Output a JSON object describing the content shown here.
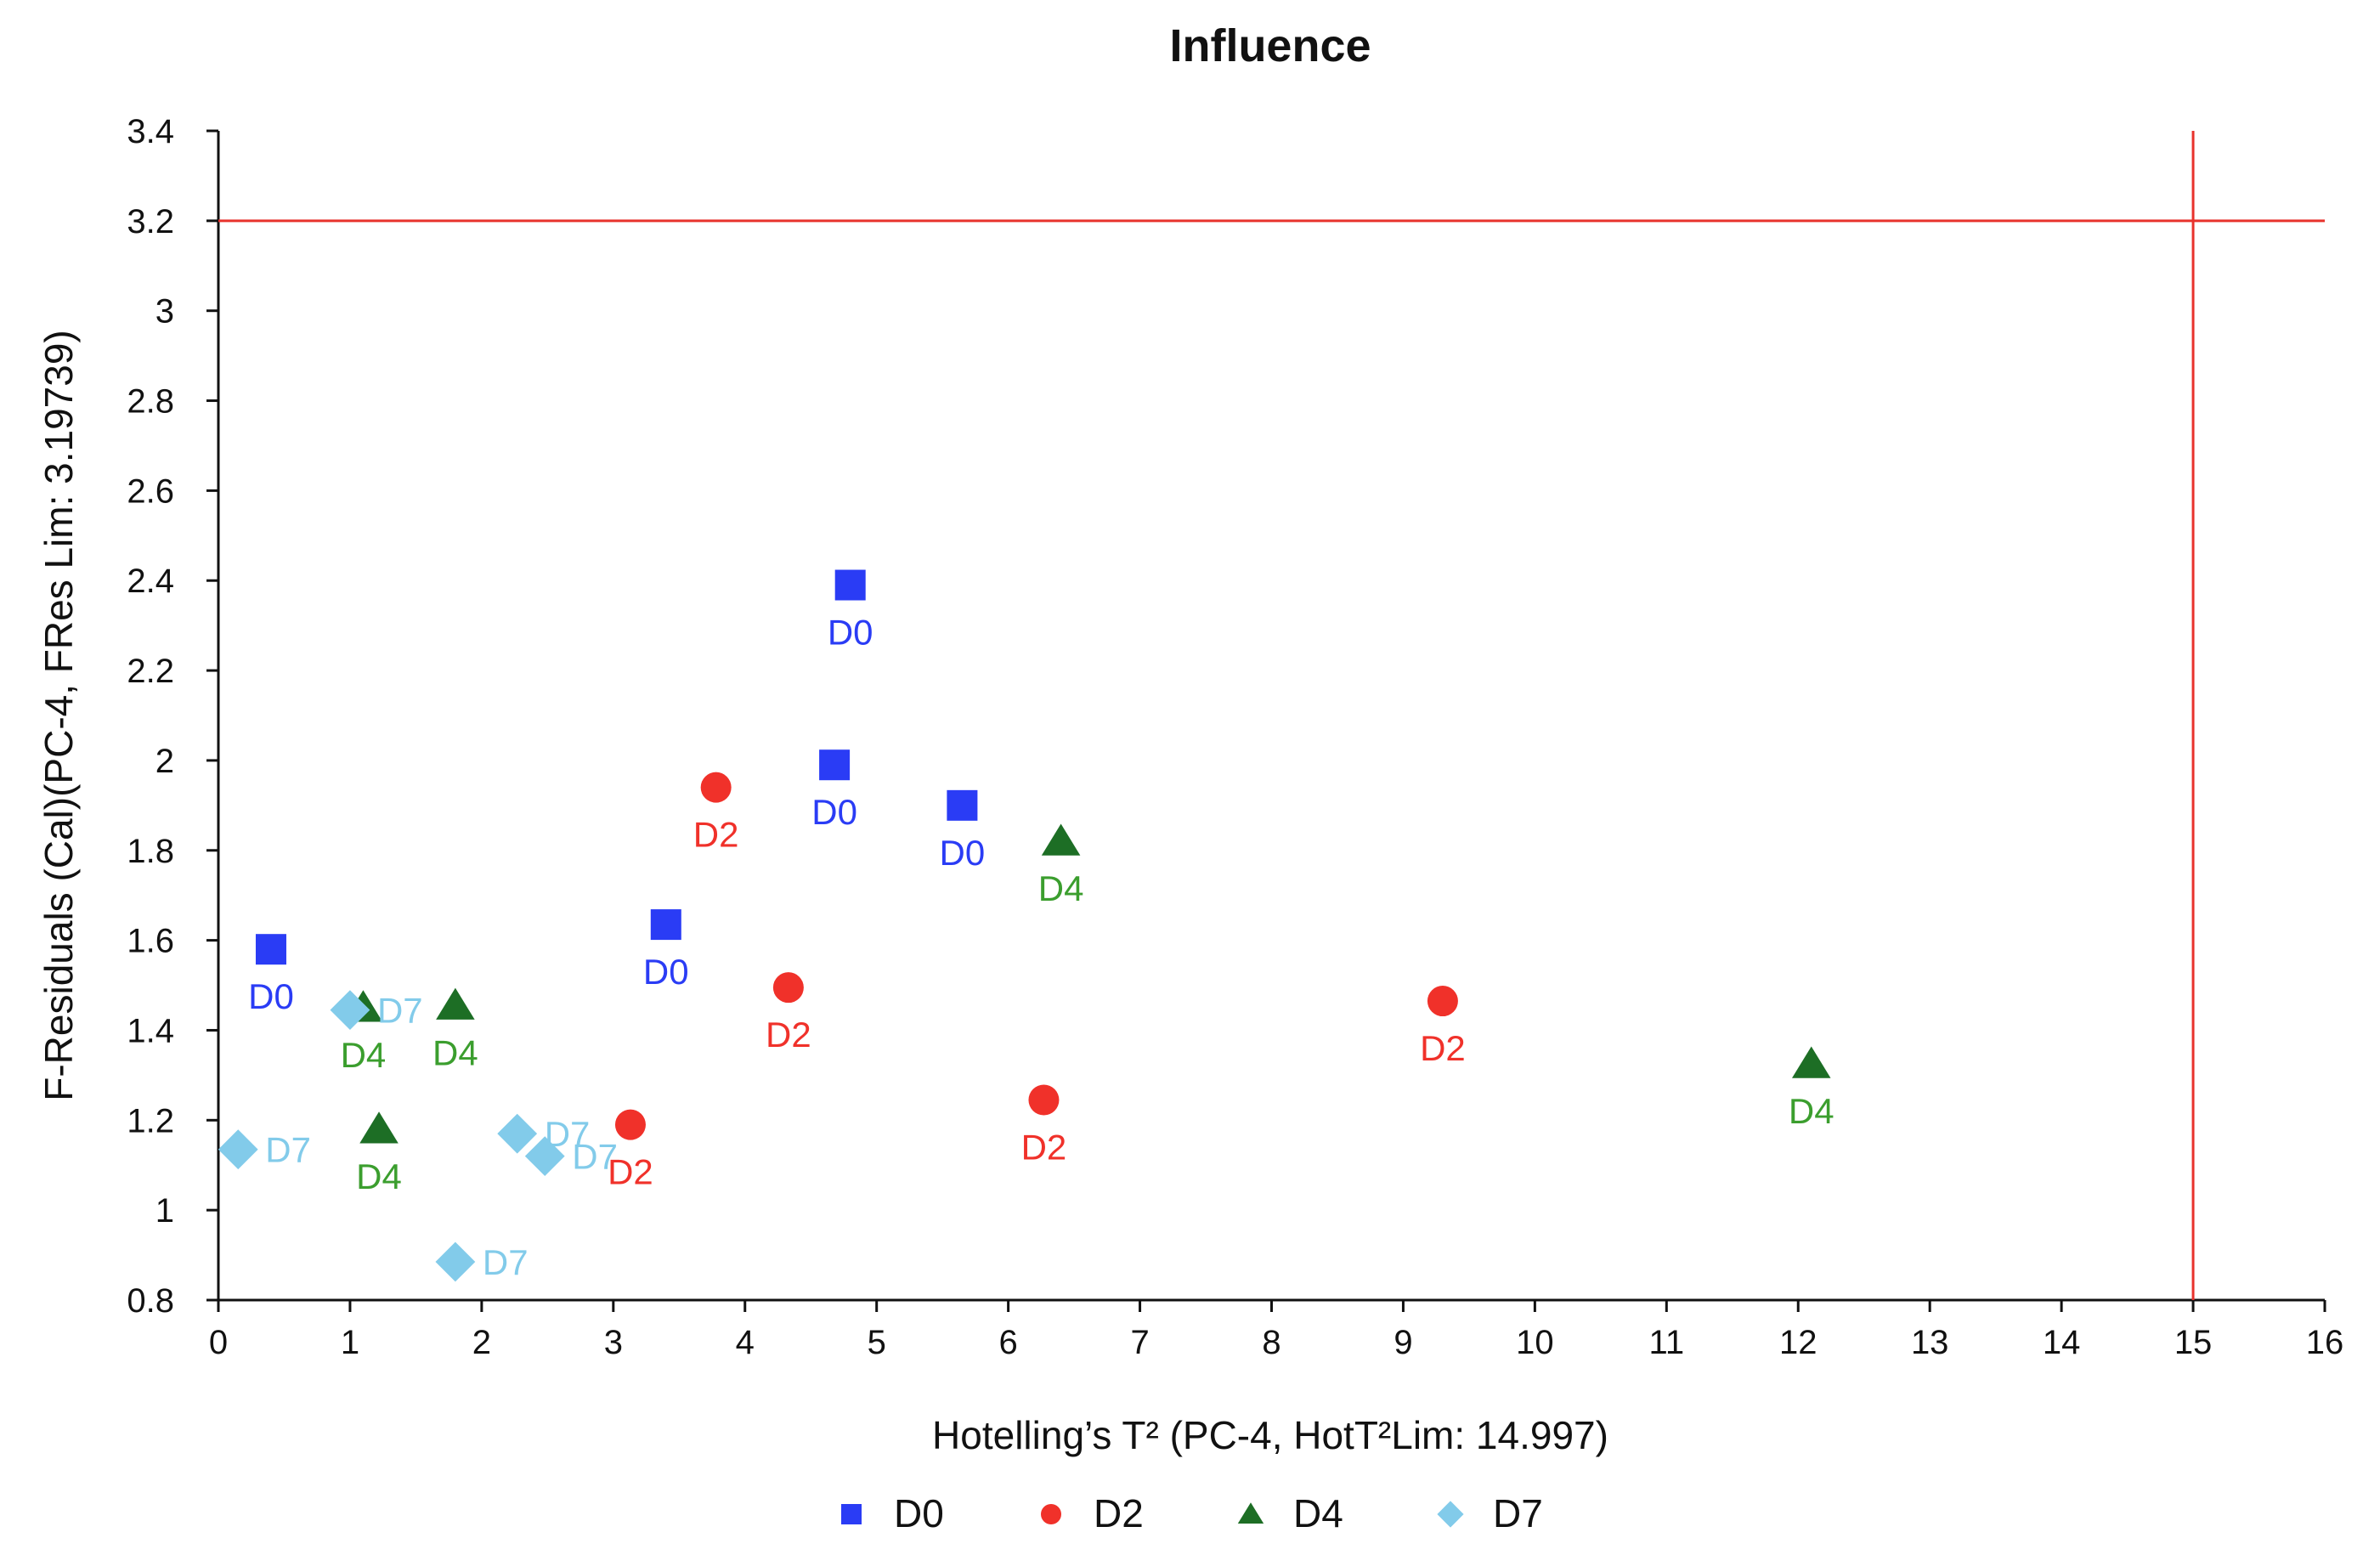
{
  "chart_data": {
    "type": "scatter",
    "title": "Influence",
    "xlabel": "Hotelling’s T² (PC-4, HotT²Lim: 14.997)",
    "ylabel": "F-Residuals (Cal)(PC-4, FRes Lim: 3.19739)",
    "xlim": [
      0,
      16
    ],
    "ylim": [
      0.8,
      3.4
    ],
    "xticks": [
      0,
      1,
      2,
      3,
      4,
      5,
      6,
      7,
      8,
      9,
      10,
      11,
      12,
      13,
      14,
      15,
      16
    ],
    "yticks": [
      0.8,
      1,
      1.2,
      1.4,
      1.6,
      1.8,
      2,
      2.2,
      2.4,
      2.6,
      2.8,
      3,
      3.2,
      3.4
    ],
    "ytick_labels": [
      "0.8",
      "1",
      "1.2",
      "1.4",
      "1.6",
      "1.8",
      "2",
      "2.2",
      "2.4",
      "2.6",
      "2.8",
      "3",
      "3.2",
      "3.4"
    ],
    "limit_lines": {
      "x": 15,
      "y": 3.2,
      "color": "#e8322c"
    },
    "legend_position": "bottom",
    "series": [
      {
        "name": "D0",
        "marker": "square",
        "color": "#2a3cf5",
        "label_color": "#2a3cf5",
        "points": [
          [
            0.4,
            1.58
          ],
          [
            4.8,
            2.39
          ],
          [
            4.68,
            1.99
          ],
          [
            5.65,
            1.9
          ],
          [
            3.4,
            1.635
          ]
        ]
      },
      {
        "name": "D2",
        "marker": "circle",
        "color": "#f0312a",
        "label_color": "#f0312a",
        "points": [
          [
            3.78,
            1.94
          ],
          [
            4.33,
            1.495
          ],
          [
            3.13,
            1.19
          ],
          [
            6.27,
            1.245
          ],
          [
            9.3,
            1.465
          ]
        ]
      },
      {
        "name": "D4",
        "marker": "triangle",
        "color": "#1d6e25",
        "label_color": "#3b9e2e",
        "points": [
          [
            6.4,
            1.82
          ],
          [
            1.1,
            1.45
          ],
          [
            1.8,
            1.455
          ],
          [
            1.22,
            1.18
          ],
          [
            12.1,
            1.325
          ]
        ]
      },
      {
        "name": "D7",
        "marker": "diamond",
        "color": "#82cbea",
        "label_color": "#82cbea",
        "points": [
          [
            1.0,
            1.445
          ],
          [
            0.15,
            1.135
          ],
          [
            2.27,
            1.17
          ],
          [
            2.48,
            1.12
          ],
          [
            1.8,
            0.885
          ]
        ]
      }
    ]
  }
}
